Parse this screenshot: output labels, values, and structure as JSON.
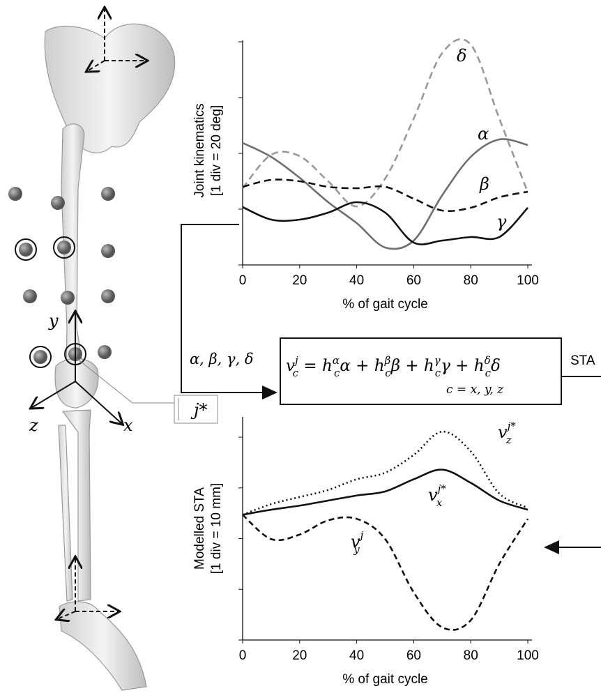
{
  "chart_data": [
    {
      "type": "line",
      "y_label": "Joint kinematics",
      "y_label_2": "[1 div = 20 deg]",
      "x_label": "% of gait cycle",
      "x": [
        0,
        10,
        20,
        30,
        40,
        50,
        60,
        70,
        80,
        90,
        100
      ],
      "xlim": [
        0,
        100
      ],
      "xticks": [
        0,
        20,
        40,
        60,
        80,
        100
      ],
      "ylim": [
        0,
        82
      ],
      "yticks": [
        0,
        20,
        40,
        60,
        80
      ],
      "series": [
        {
          "name": "δ",
          "color": "#999999",
          "dash": true,
          "values": [
            27.5,
            39.5,
            39,
            30,
            21,
            31,
            52.5,
            76,
            79,
            52.5,
            26
          ]
        },
        {
          "name": "α",
          "color": "#6e6e6e",
          "dash": false,
          "values": [
            43.75,
            38.75,
            31.25,
            22.5,
            15,
            6.25,
            8.75,
            25,
            38.75,
            45,
            43
          ]
        },
        {
          "name": "β",
          "color": "#111111",
          "dash": true,
          "values": [
            28,
            30.5,
            30,
            28,
            27.5,
            28,
            23.75,
            19.5,
            20.5,
            24.25,
            26.25
          ]
        },
        {
          "name": "γ",
          "color": "#111111",
          "dash": false,
          "values": [
            20.75,
            16.25,
            16.25,
            18.75,
            22.5,
            18.75,
            8,
            8.75,
            10,
            10,
            20.5
          ]
        }
      ]
    },
    {
      "type": "line",
      "y_label": "Modelled STA",
      "y_label_2": "[1 div = 10 mm]",
      "x_label": "% of gait cycle",
      "x": [
        0,
        10,
        20,
        30,
        40,
        50,
        60,
        70,
        80,
        90,
        100
      ],
      "xlim": [
        0,
        100
      ],
      "xticks": [
        0,
        20,
        40,
        60,
        80,
        100
      ],
      "ylim": [
        0,
        44
      ],
      "yticks": [
        0,
        10,
        20,
        30,
        40
      ],
      "series": [
        {
          "name": "v",
          "sub": "z",
          "sup": "j*",
          "color": "#111111",
          "dash": "dot",
          "values": [
            24.7,
            26.8,
            28.2,
            29.6,
            31.7,
            33,
            36.5,
            41.1,
            37.2,
            28.9,
            26.1
          ]
        },
        {
          "name": "v",
          "sub": "x",
          "sup": "j*",
          "color": "#111111",
          "dash": "none",
          "values": [
            24.7,
            25.7,
            26.5,
            27.5,
            28.5,
            29.3,
            31.7,
            33.6,
            31,
            27.5,
            25.7
          ]
        },
        {
          "name": "v",
          "sub": "y",
          "sup": "j",
          "color": "#111111",
          "dash": "dash",
          "values": [
            24.7,
            19.9,
            20.8,
            23.6,
            23.9,
            19.9,
            9.4,
            2.5,
            3.9,
            15,
            23.9
          ]
        }
      ]
    }
  ],
  "figure": {
    "inputs": "α, β, γ, δ",
    "equation": [
      {
        "base": "v",
        "sub": "c",
        "sup": "j",
        "tail": " = "
      },
      {
        "base": "h",
        "sub": "c",
        "sup": "α",
        "tail": "α + "
      },
      {
        "base": "h",
        "sub": "c",
        "sup": "β",
        "tail": "β + "
      },
      {
        "base": "h",
        "sub": "c",
        "sup": "γ",
        "tail": "γ + "
      },
      {
        "base": "h",
        "sub": "c",
        "sup": "δ",
        "tail": "δ"
      }
    ],
    "condition": "c = x, y, z",
    "output": "STA",
    "marker": "j*",
    "axis_y": "y",
    "axis_z": "z",
    "axis_x": "x"
  }
}
